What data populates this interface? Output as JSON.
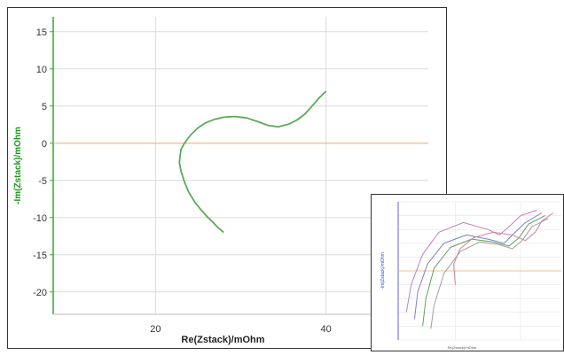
{
  "chart_data": [
    {
      "type": "line",
      "title": "",
      "xlabel": "Re(Zstack)/mOhm",
      "ylabel": "-Im(Zstack)/mOhm",
      "xlim": [
        8,
        52
      ],
      "ylim": [
        -23,
        17
      ],
      "x_ticks": [
        20,
        40
      ],
      "y_ticks": [
        15,
        10,
        5,
        0,
        -5,
        -10,
        -15,
        -20
      ],
      "grid": true,
      "reference_line_y": 0,
      "colors": {
        "series": "#5aaa5a",
        "zero_line": "#f0b070",
        "grid": "#dcdcdc",
        "axis": "#33aa33"
      },
      "series": [
        {
          "x": [
            40.0,
            39.2,
            38.3,
            37.5,
            36.7,
            35.7,
            34.4,
            33.2,
            32.0,
            30.7,
            29.3,
            28.0,
            26.9,
            25.8,
            24.9,
            24.1,
            23.4,
            23.0,
            22.9,
            22.8,
            23.0,
            23.4,
            23.9,
            24.6,
            25.3,
            26.0,
            26.7,
            27.3,
            28.0
          ],
          "y": [
            7.0,
            6.1,
            4.9,
            3.9,
            3.2,
            2.6,
            2.2,
            2.4,
            2.9,
            3.4,
            3.6,
            3.5,
            3.2,
            2.7,
            2.0,
            1.1,
            0.0,
            -0.8,
            -1.6,
            -2.6,
            -3.8,
            -5.2,
            -6.6,
            -7.9,
            -8.9,
            -9.8,
            -10.6,
            -11.3,
            -12.0
          ]
        }
      ]
    },
    {
      "type": "line",
      "title": "",
      "xlabel": "Re(Zstack)/mOhm",
      "ylabel": "-Im(Zstack)/mOhm",
      "xlim": [
        0,
        100
      ],
      "ylim": [
        0,
        100
      ],
      "grid": true,
      "series": [
        {
          "color": "#c080c0",
          "x": [
            5,
            8,
            15,
            25,
            40,
            55,
            62,
            68,
            75,
            85
          ],
          "y": [
            20,
            40,
            62,
            78,
            85,
            80,
            76,
            82,
            90,
            94
          ]
        },
        {
          "color": "#8080c0",
          "x": [
            10,
            12,
            18,
            28,
            42,
            55,
            65,
            70,
            78,
            88
          ],
          "y": [
            15,
            35,
            55,
            70,
            76,
            73,
            70,
            76,
            85,
            92
          ]
        },
        {
          "color": "#60a060",
          "x": [
            15,
            17,
            22,
            32,
            45,
            58,
            68,
            74,
            80,
            90
          ],
          "y": [
            10,
            30,
            52,
            67,
            73,
            71,
            68,
            74,
            84,
            90
          ]
        },
        {
          "color": "#a0a0a0",
          "x": [
            20,
            22,
            28,
            38,
            50,
            62,
            70,
            76,
            82,
            92
          ],
          "y": [
            8,
            25,
            48,
            64,
            71,
            69,
            66,
            72,
            82,
            88
          ]
        },
        {
          "color": "#d080a0",
          "x": [
            35,
            34,
            38,
            46,
            58,
            70,
            78,
            84,
            88,
            95
          ],
          "y": [
            40,
            55,
            66,
            74,
            78,
            76,
            72,
            78,
            86,
            92
          ]
        }
      ]
    }
  ]
}
